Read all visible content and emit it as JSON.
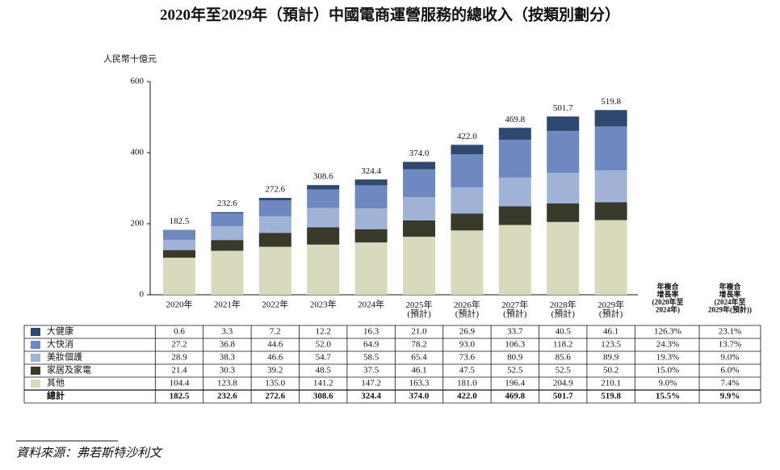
{
  "chart_data": {
    "type": "bar",
    "stacked": true,
    "title": "2020年至2029年（預計）中國電商運營服務的總收入（按類別劃分）",
    "y_axis_label": "人民幣十億元",
    "categories": [
      "2020年",
      "2021年",
      "2022年",
      "2023年",
      "2024年",
      "2025年\n(預計)",
      "2026年\n(預計)",
      "2027年\n(預計)",
      "2028年\n(預計)",
      "2029年\n(預計)"
    ],
    "series": [
      {
        "name": "大健康",
        "color": "#2e4870",
        "values": [
          0.6,
          3.3,
          7.2,
          12.2,
          16.3,
          21.0,
          26.9,
          33.7,
          40.5,
          46.1
        ],
        "value_labels": [
          "0.6",
          "3.3",
          "7.2",
          "12.2",
          "16.3",
          "21.0",
          "26.9",
          "33.7",
          "40.5",
          "46.1"
        ]
      },
      {
        "name": "大快消",
        "color": "#6d89bf",
        "values": [
          27.2,
          36.8,
          44.6,
          52.0,
          64.9,
          78.2,
          93.0,
          106.3,
          118.2,
          123.5
        ],
        "value_labels": [
          "27.2",
          "36.8",
          "44.6",
          "52.0",
          "64.9",
          "78.2",
          "93.0",
          "106.3",
          "118.2",
          "123.5"
        ]
      },
      {
        "name": "美妝個護",
        "color": "#a0b3d7",
        "values": [
          28.9,
          38.3,
          46.6,
          54.7,
          58.5,
          65.4,
          73.6,
          80.9,
          85.6,
          89.9
        ],
        "value_labels": [
          "28.9",
          "38.3",
          "46.6",
          "54.7",
          "58.5",
          "65.4",
          "73.6",
          "80.9",
          "85.6",
          "89.9"
        ]
      },
      {
        "name": "家居及家電",
        "color": "#38392a",
        "values": [
          21.4,
          30.3,
          39.2,
          48.5,
          37.5,
          46.1,
          47.5,
          52.5,
          52.5,
          50.2
        ],
        "value_labels": [
          "21.4",
          "30.3",
          "39.2",
          "48.5",
          "37.5",
          "46.1",
          "47.5",
          "52.5",
          "52.5",
          "50.2"
        ]
      },
      {
        "name": "其他",
        "color": "#d8d9bd",
        "values": [
          104.4,
          123.8,
          135.0,
          141.2,
          147.2,
          163.3,
          181.0,
          196.4,
          204.9,
          210.1
        ],
        "value_labels": [
          "104.4",
          "123.8",
          "135.0",
          "141.2",
          "147.2",
          "163.3",
          "181.0",
          "196.4",
          "204.9",
          "210.1"
        ]
      }
    ],
    "totals": {
      "name": "總計",
      "values": [
        182.5,
        232.6,
        272.6,
        308.6,
        324.4,
        374.0,
        422.0,
        469.8,
        501.7,
        519.8
      ],
      "value_labels": [
        "182.5",
        "232.6",
        "272.6",
        "308.6",
        "324.4",
        "374.0",
        "422.0",
        "469.8",
        "501.7",
        "519.8"
      ]
    },
    "cagr_columns": [
      {
        "header": "年複合\n增長率\n(2020年至\n2024年)",
        "values": [
          "126.3%",
          "24.3%",
          "19.3%",
          "15.0%",
          "9.0%",
          "15.5%"
        ]
      },
      {
        "header": "年複合\n增長率\n(2024年至\n2029年(預計))",
        "values": [
          "23.1%",
          "13.7%",
          "9.0%",
          "6.0%",
          "7.4%",
          "9.9%"
        ]
      }
    ],
    "ylim": [
      0,
      600
    ],
    "yticks": [
      0,
      200,
      400,
      600
    ]
  },
  "source": "資料來源：弗若斯特沙利文"
}
